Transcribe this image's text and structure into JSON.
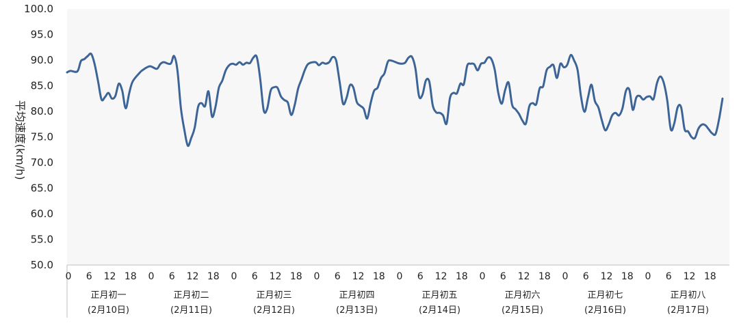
{
  "chart_data": {
    "type": "line",
    "title": "",
    "xlabel": "",
    "ylabel": "平均速度(km/h)",
    "ylim": [
      50,
      100
    ],
    "yticks": [
      "50.0",
      "55.0",
      "60.0",
      "65.0",
      "70.0",
      "75.0",
      "80.0",
      "85.0",
      "90.0",
      "95.0",
      "100.0"
    ],
    "hour_ticks": [
      "0",
      "6",
      "12",
      "18"
    ],
    "days": [
      {
        "lunar": "正月初一",
        "date": "(2月10日)"
      },
      {
        "lunar": "正月初二",
        "date": "(2月11日)"
      },
      {
        "lunar": "正月初三",
        "date": "(2月12日)"
      },
      {
        "lunar": "正月初四",
        "date": "(2月13日)"
      },
      {
        "lunar": "正月初五",
        "date": "(2月14日)"
      },
      {
        "lunar": "正月初六",
        "date": "(2月15日)"
      },
      {
        "lunar": "正月初七",
        "date": "(2月16日)"
      },
      {
        "lunar": "正月初八",
        "date": "(2月17日)"
      }
    ],
    "grid": false,
    "line_color": "#3c6496",
    "plot_background": "#f7f7f7",
    "series": [
      {
        "x_unit": "hours since 2月10日 00:00",
        "points": [
          [
            0,
            87.6
          ],
          [
            1,
            87.9
          ],
          [
            3,
            87.8
          ],
          [
            4,
            89.8
          ],
          [
            5,
            90.2
          ],
          [
            6,
            90.8
          ],
          [
            7,
            91.2
          ],
          [
            8,
            89.2
          ],
          [
            9,
            85.8
          ],
          [
            10,
            82.3
          ],
          [
            11,
            82.8
          ],
          [
            12,
            83.6
          ],
          [
            13,
            82.5
          ],
          [
            14,
            83.0
          ],
          [
            15,
            85.4
          ],
          [
            16,
            84.0
          ],
          [
            17,
            80.6
          ],
          [
            18,
            83.5
          ],
          [
            19,
            85.8
          ],
          [
            21,
            87.5
          ],
          [
            22,
            88.1
          ],
          [
            24,
            88.8
          ],
          [
            26,
            88.3
          ],
          [
            27,
            89.2
          ],
          [
            28,
            89.6
          ],
          [
            30,
            89.3
          ],
          [
            31,
            90.8
          ],
          [
            32,
            88.0
          ],
          [
            33,
            80.6
          ],
          [
            34,
            76.4
          ],
          [
            35,
            73.3
          ],
          [
            36,
            74.8
          ],
          [
            37,
            76.8
          ],
          [
            38,
            80.9
          ],
          [
            39,
            81.6
          ],
          [
            40,
            81.0
          ],
          [
            41,
            83.9
          ],
          [
            42,
            79.0
          ],
          [
            43,
            80.8
          ],
          [
            44,
            84.6
          ],
          [
            45,
            86.0
          ],
          [
            46,
            88.0
          ],
          [
            47,
            89.0
          ],
          [
            48,
            89.3
          ],
          [
            49,
            89.1
          ],
          [
            50,
            89.6
          ],
          [
            51,
            89.1
          ],
          [
            52,
            89.5
          ],
          [
            53,
            89.4
          ],
          [
            54,
            90.5
          ],
          [
            55,
            90.6
          ],
          [
            56,
            86.3
          ],
          [
            57,
            80.2
          ],
          [
            58,
            80.5
          ],
          [
            59,
            84.0
          ],
          [
            60,
            84.7
          ],
          [
            61,
            84.6
          ],
          [
            62,
            82.9
          ],
          [
            63,
            82.2
          ],
          [
            64,
            81.7
          ],
          [
            65,
            79.3
          ],
          [
            66,
            81.3
          ],
          [
            67,
            84.5
          ],
          [
            68,
            86.3
          ],
          [
            69,
            88.2
          ],
          [
            70,
            89.3
          ],
          [
            72,
            89.6
          ],
          [
            73,
            89.0
          ],
          [
            74,
            89.5
          ],
          [
            75,
            89.3
          ],
          [
            76,
            89.6
          ],
          [
            77,
            90.6
          ],
          [
            78,
            89.9
          ],
          [
            79,
            85.8
          ],
          [
            80,
            81.5
          ],
          [
            81,
            82.6
          ],
          [
            82,
            85.1
          ],
          [
            83,
            84.6
          ],
          [
            84,
            81.8
          ],
          [
            85,
            81.1
          ],
          [
            86,
            80.5
          ],
          [
            87,
            78.6
          ],
          [
            88,
            81.6
          ],
          [
            89,
            84.0
          ],
          [
            90,
            84.6
          ],
          [
            91,
            86.5
          ],
          [
            92,
            87.4
          ],
          [
            93,
            89.7
          ],
          [
            94,
            89.9
          ],
          [
            96,
            89.4
          ],
          [
            97,
            89.3
          ],
          [
            98,
            89.5
          ],
          [
            99,
            90.5
          ],
          [
            100,
            90.6
          ],
          [
            101,
            88.3
          ],
          [
            102,
            83.0
          ],
          [
            103,
            83.2
          ],
          [
            104,
            86.0
          ],
          [
            105,
            85.8
          ],
          [
            106,
            81.2
          ],
          [
            107,
            79.8
          ],
          [
            108,
            79.7
          ],
          [
            109,
            79.2
          ],
          [
            110,
            77.6
          ],
          [
            111,
            82.6
          ],
          [
            112,
            83.6
          ],
          [
            113,
            83.5
          ],
          [
            114,
            85.4
          ],
          [
            115,
            85.3
          ],
          [
            116,
            88.9
          ],
          [
            117,
            89.3
          ],
          [
            118,
            89.2
          ],
          [
            119,
            88.0
          ],
          [
            120,
            89.3
          ],
          [
            121,
            89.5
          ],
          [
            122,
            90.5
          ],
          [
            123,
            90.2
          ],
          [
            124,
            88.0
          ],
          [
            125,
            83.6
          ],
          [
            126,
            81.5
          ],
          [
            127,
            84.2
          ],
          [
            128,
            85.6
          ],
          [
            129,
            81.3
          ],
          [
            130,
            80.4
          ],
          [
            131,
            79.5
          ],
          [
            132,
            78.2
          ],
          [
            133,
            77.6
          ],
          [
            134,
            81.0
          ],
          [
            135,
            81.6
          ],
          [
            136,
            81.4
          ],
          [
            137,
            84.5
          ],
          [
            138,
            84.9
          ],
          [
            139,
            88.0
          ],
          [
            140,
            88.7
          ],
          [
            141,
            89.0
          ],
          [
            142,
            86.5
          ],
          [
            143,
            89.3
          ],
          [
            144,
            88.6
          ],
          [
            145,
            89.1
          ],
          [
            146,
            91.0
          ],
          [
            147,
            89.9
          ],
          [
            148,
            88.0
          ],
          [
            149,
            82.8
          ],
          [
            150,
            79.9
          ],
          [
            151,
            82.7
          ],
          [
            152,
            85.2
          ],
          [
            153,
            82.0
          ],
          [
            154,
            80.8
          ],
          [
            155,
            78.3
          ],
          [
            156,
            76.3
          ],
          [
            157,
            77.4
          ],
          [
            158,
            79.2
          ],
          [
            159,
            79.7
          ],
          [
            160,
            79.2
          ],
          [
            161,
            80.6
          ],
          [
            162,
            84.0
          ],
          [
            163,
            84.2
          ],
          [
            164,
            80.3
          ],
          [
            165,
            82.7
          ],
          [
            166,
            83.0
          ],
          [
            167,
            82.3
          ],
          [
            168,
            82.8
          ],
          [
            169,
            82.9
          ],
          [
            170,
            82.4
          ],
          [
            171,
            85.5
          ],
          [
            172,
            86.8
          ],
          [
            173,
            85.5
          ],
          [
            174,
            82.0
          ],
          [
            175,
            76.5
          ],
          [
            176,
            77.6
          ],
          [
            177,
            80.8
          ],
          [
            178,
            80.8
          ],
          [
            179,
            76.5
          ],
          [
            180,
            76.1
          ],
          [
            181,
            75.0
          ],
          [
            182,
            74.8
          ],
          [
            183,
            76.6
          ],
          [
            184,
            77.4
          ],
          [
            185,
            77.3
          ],
          [
            186,
            76.5
          ],
          [
            187,
            75.7
          ],
          [
            188,
            75.6
          ],
          [
            189,
            78.5
          ],
          [
            190,
            82.5
          ]
        ]
      }
    ]
  }
}
